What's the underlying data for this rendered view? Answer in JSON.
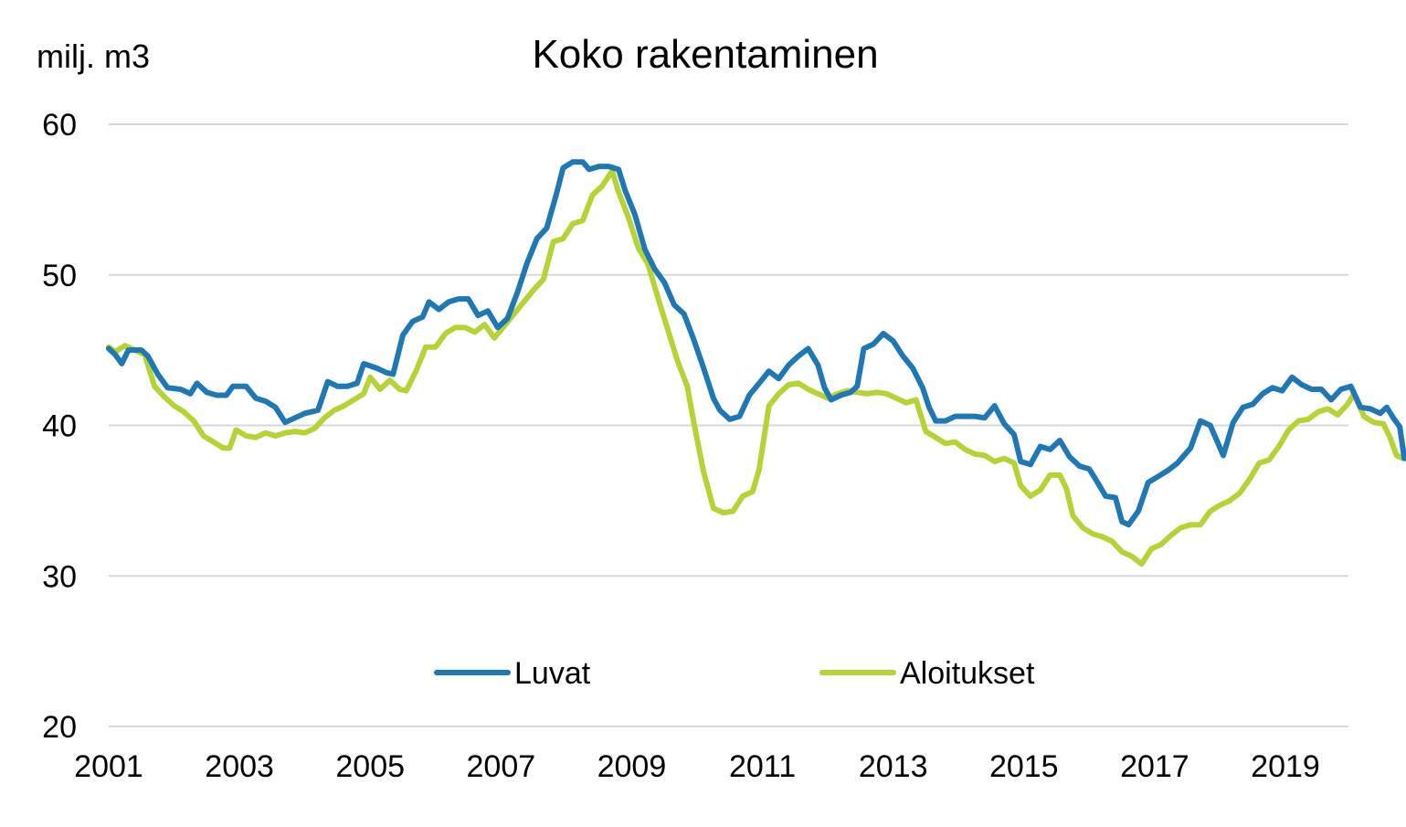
{
  "chart_data": {
    "type": "line",
    "title": "Koko rakentaminen",
    "ylabel": "milj. m3",
    "xlabel": "",
    "xlim": [
      2001,
      2020.1
    ],
    "ylim": [
      20,
      60
    ],
    "yticks": [
      20,
      30,
      40,
      50,
      60
    ],
    "xticks": [
      2001,
      2003,
      2005,
      2007,
      2009,
      2011,
      2013,
      2015,
      2017,
      2019
    ],
    "grid": true,
    "legend": "bottom-center",
    "series": [
      {
        "name": "Luvat",
        "color": "#1f77b4",
        "points": [
          [
            2001.0,
            45.1
          ],
          [
            2001.1,
            44.7
          ],
          [
            2001.2,
            44.1
          ],
          [
            2001.3,
            45.0
          ],
          [
            2001.5,
            45.0
          ],
          [
            2001.6,
            44.6
          ],
          [
            2001.75,
            43.4
          ],
          [
            2001.9,
            42.5
          ],
          [
            2002.1,
            42.4
          ],
          [
            2002.25,
            42.1
          ],
          [
            2002.35,
            42.8
          ],
          [
            2002.5,
            42.2
          ],
          [
            2002.65,
            42.0
          ],
          [
            2002.8,
            42.0
          ],
          [
            2002.9,
            42.6
          ],
          [
            2003.1,
            42.6
          ],
          [
            2003.25,
            41.8
          ],
          [
            2003.4,
            41.6
          ],
          [
            2003.55,
            41.2
          ],
          [
            2003.7,
            40.2
          ],
          [
            2003.85,
            40.5
          ],
          [
            2004.0,
            40.8
          ],
          [
            2004.2,
            41.0
          ],
          [
            2004.35,
            42.9
          ],
          [
            2004.5,
            42.6
          ],
          [
            2004.65,
            42.6
          ],
          [
            2004.8,
            42.8
          ],
          [
            2004.9,
            44.1
          ],
          [
            2005.1,
            43.8
          ],
          [
            2005.25,
            43.5
          ],
          [
            2005.35,
            43.4
          ],
          [
            2005.5,
            46.0
          ],
          [
            2005.65,
            46.9
          ],
          [
            2005.8,
            47.2
          ],
          [
            2005.9,
            48.2
          ],
          [
            2006.05,
            47.7
          ],
          [
            2006.2,
            48.2
          ],
          [
            2006.35,
            48.4
          ],
          [
            2006.5,
            48.4
          ],
          [
            2006.65,
            47.3
          ],
          [
            2006.8,
            47.6
          ],
          [
            2006.95,
            46.5
          ],
          [
            2007.1,
            47.1
          ],
          [
            2007.25,
            48.8
          ],
          [
            2007.4,
            50.8
          ],
          [
            2007.55,
            52.4
          ],
          [
            2007.7,
            53.1
          ],
          [
            2007.85,
            55.4
          ],
          [
            2007.95,
            57.1
          ],
          [
            2008.1,
            57.5
          ],
          [
            2008.25,
            57.5
          ],
          [
            2008.35,
            57.0
          ],
          [
            2008.5,
            57.2
          ],
          [
            2008.65,
            57.2
          ],
          [
            2008.8,
            57.0
          ],
          [
            2008.9,
            55.6
          ],
          [
            2009.05,
            54.0
          ],
          [
            2009.2,
            51.7
          ],
          [
            2009.35,
            50.4
          ],
          [
            2009.5,
            49.5
          ],
          [
            2009.65,
            48.0
          ],
          [
            2009.8,
            47.4
          ],
          [
            2009.95,
            45.7
          ],
          [
            2010.1,
            43.8
          ],
          [
            2010.25,
            41.8
          ],
          [
            2010.35,
            41.0
          ],
          [
            2010.5,
            40.4
          ],
          [
            2010.65,
            40.6
          ],
          [
            2010.8,
            42.0
          ],
          [
            2010.95,
            42.8
          ],
          [
            2011.1,
            43.6
          ],
          [
            2011.25,
            43.1
          ],
          [
            2011.4,
            44.0
          ],
          [
            2011.55,
            44.6
          ],
          [
            2011.7,
            45.1
          ],
          [
            2011.85,
            44.0
          ],
          [
            2011.95,
            42.5
          ],
          [
            2012.05,
            41.7
          ],
          [
            2012.2,
            42.0
          ],
          [
            2012.35,
            42.2
          ],
          [
            2012.45,
            42.6
          ],
          [
            2012.55,
            45.1
          ],
          [
            2012.7,
            45.4
          ],
          [
            2012.85,
            46.1
          ],
          [
            2013.0,
            45.6
          ],
          [
            2013.15,
            44.6
          ],
          [
            2013.3,
            43.8
          ],
          [
            2013.45,
            42.5
          ],
          [
            2013.55,
            41.2
          ],
          [
            2013.65,
            40.3
          ],
          [
            2013.8,
            40.3
          ],
          [
            2013.95,
            40.6
          ],
          [
            2014.1,
            40.6
          ],
          [
            2014.25,
            40.6
          ],
          [
            2014.4,
            40.5
          ],
          [
            2014.55,
            41.3
          ],
          [
            2014.7,
            40.1
          ],
          [
            2014.85,
            39.4
          ],
          [
            2014.95,
            37.6
          ],
          [
            2015.1,
            37.4
          ],
          [
            2015.25,
            38.6
          ],
          [
            2015.4,
            38.4
          ],
          [
            2015.55,
            39.0
          ],
          [
            2015.7,
            37.9
          ],
          [
            2015.85,
            37.3
          ],
          [
            2016.0,
            37.1
          ],
          [
            2016.1,
            36.4
          ],
          [
            2016.25,
            35.3
          ],
          [
            2016.4,
            35.2
          ],
          [
            2016.5,
            33.6
          ],
          [
            2016.6,
            33.4
          ],
          [
            2016.75,
            34.3
          ],
          [
            2016.9,
            36.2
          ],
          [
            2017.05,
            36.6
          ],
          [
            2017.2,
            37.0
          ],
          [
            2017.35,
            37.5
          ],
          [
            2017.45,
            38.0
          ],
          [
            2017.55,
            38.5
          ],
          [
            2017.7,
            40.3
          ],
          [
            2017.85,
            40.0
          ],
          [
            2017.95,
            39.0
          ],
          [
            2018.05,
            38.0
          ],
          [
            2018.2,
            40.2
          ],
          [
            2018.35,
            41.2
          ],
          [
            2018.5,
            41.4
          ],
          [
            2018.65,
            42.1
          ],
          [
            2018.8,
            42.5
          ],
          [
            2018.95,
            42.3
          ],
          [
            2019.1,
            43.2
          ],
          [
            2019.25,
            42.7
          ],
          [
            2019.4,
            42.4
          ],
          [
            2019.55,
            42.4
          ],
          [
            2019.7,
            41.7
          ],
          [
            2019.85,
            42.4
          ],
          [
            2020.0,
            42.6
          ],
          [
            2020.15,
            41.2
          ],
          [
            2020.3,
            41.1
          ],
          [
            2020.45,
            40.8
          ],
          [
            2020.55,
            41.2
          ],
          [
            2020.65,
            40.5
          ],
          [
            2020.75,
            39.9
          ],
          [
            2020.82,
            37.8
          ],
          [
            2020.9,
            37.9
          ]
        ]
      },
      {
        "name": "Aloitukset",
        "color": "#b5d334",
        "points": [
          [
            2001.0,
            45.2
          ],
          [
            2001.1,
            44.9
          ],
          [
            2001.25,
            45.3
          ],
          [
            2001.4,
            45.0
          ],
          [
            2001.55,
            44.7
          ],
          [
            2001.7,
            42.6
          ],
          [
            2001.85,
            41.9
          ],
          [
            2002.0,
            41.3
          ],
          [
            2002.15,
            40.9
          ],
          [
            2002.3,
            40.3
          ],
          [
            2002.45,
            39.3
          ],
          [
            2002.6,
            38.9
          ],
          [
            2002.75,
            38.5
          ],
          [
            2002.85,
            38.5
          ],
          [
            2002.95,
            39.7
          ],
          [
            2003.1,
            39.3
          ],
          [
            2003.25,
            39.2
          ],
          [
            2003.4,
            39.5
          ],
          [
            2003.55,
            39.3
          ],
          [
            2003.7,
            39.5
          ],
          [
            2003.85,
            39.6
          ],
          [
            2004.0,
            39.5
          ],
          [
            2004.15,
            39.8
          ],
          [
            2004.3,
            40.5
          ],
          [
            2004.45,
            41.0
          ],
          [
            2004.6,
            41.3
          ],
          [
            2004.75,
            41.7
          ],
          [
            2004.9,
            42.1
          ],
          [
            2005.0,
            43.2
          ],
          [
            2005.15,
            42.4
          ],
          [
            2005.3,
            43.0
          ],
          [
            2005.45,
            42.4
          ],
          [
            2005.55,
            42.3
          ],
          [
            2005.7,
            43.6
          ],
          [
            2005.85,
            45.2
          ],
          [
            2006.0,
            45.2
          ],
          [
            2006.15,
            46.1
          ],
          [
            2006.3,
            46.5
          ],
          [
            2006.45,
            46.5
          ],
          [
            2006.6,
            46.2
          ],
          [
            2006.75,
            46.7
          ],
          [
            2006.9,
            45.8
          ],
          [
            2007.05,
            46.6
          ],
          [
            2007.2,
            47.4
          ],
          [
            2007.35,
            48.2
          ],
          [
            2007.5,
            49.0
          ],
          [
            2007.65,
            49.7
          ],
          [
            2007.8,
            52.2
          ],
          [
            2007.95,
            52.4
          ],
          [
            2008.1,
            53.4
          ],
          [
            2008.25,
            53.6
          ],
          [
            2008.4,
            55.3
          ],
          [
            2008.55,
            55.9
          ],
          [
            2008.7,
            56.9
          ],
          [
            2008.8,
            55.5
          ],
          [
            2008.95,
            53.8
          ],
          [
            2009.1,
            51.8
          ],
          [
            2009.25,
            50.7
          ],
          [
            2009.4,
            48.5
          ],
          [
            2009.55,
            46.4
          ],
          [
            2009.7,
            44.3
          ],
          [
            2009.85,
            42.6
          ],
          [
            2009.95,
            40.2
          ],
          [
            2010.1,
            36.9
          ],
          [
            2010.25,
            34.5
          ],
          [
            2010.4,
            34.2
          ],
          [
            2010.55,
            34.3
          ],
          [
            2010.7,
            35.3
          ],
          [
            2010.85,
            35.6
          ],
          [
            2010.95,
            37.1
          ],
          [
            2011.1,
            41.3
          ],
          [
            2011.25,
            42.1
          ],
          [
            2011.4,
            42.7
          ],
          [
            2011.55,
            42.8
          ],
          [
            2011.7,
            42.4
          ],
          [
            2011.85,
            42.1
          ],
          [
            2012.0,
            41.8
          ],
          [
            2012.15,
            42.1
          ],
          [
            2012.3,
            42.3
          ],
          [
            2012.45,
            42.2
          ],
          [
            2012.6,
            42.1
          ],
          [
            2012.75,
            42.2
          ],
          [
            2012.9,
            42.1
          ],
          [
            2013.05,
            41.8
          ],
          [
            2013.2,
            41.5
          ],
          [
            2013.35,
            41.7
          ],
          [
            2013.5,
            39.6
          ],
          [
            2013.65,
            39.2
          ],
          [
            2013.8,
            38.8
          ],
          [
            2013.95,
            38.9
          ],
          [
            2014.1,
            38.4
          ],
          [
            2014.25,
            38.1
          ],
          [
            2014.4,
            38.0
          ],
          [
            2014.55,
            37.6
          ],
          [
            2014.7,
            37.8
          ],
          [
            2014.85,
            37.5
          ],
          [
            2014.95,
            36.0
          ],
          [
            2015.1,
            35.3
          ],
          [
            2015.25,
            35.7
          ],
          [
            2015.4,
            36.7
          ],
          [
            2015.55,
            36.7
          ],
          [
            2015.65,
            35.8
          ],
          [
            2015.75,
            34.0
          ],
          [
            2015.9,
            33.2
          ],
          [
            2016.05,
            32.8
          ],
          [
            2016.2,
            32.6
          ],
          [
            2016.35,
            32.3
          ],
          [
            2016.5,
            31.6
          ],
          [
            2016.65,
            31.3
          ],
          [
            2016.8,
            30.8
          ],
          [
            2016.95,
            31.8
          ],
          [
            2017.1,
            32.1
          ],
          [
            2017.25,
            32.7
          ],
          [
            2017.4,
            33.2
          ],
          [
            2017.55,
            33.4
          ],
          [
            2017.7,
            33.4
          ],
          [
            2017.85,
            34.3
          ],
          [
            2018.0,
            34.7
          ],
          [
            2018.15,
            35.0
          ],
          [
            2018.3,
            35.5
          ],
          [
            2018.45,
            36.4
          ],
          [
            2018.6,
            37.5
          ],
          [
            2018.75,
            37.7
          ],
          [
            2018.9,
            38.6
          ],
          [
            2019.05,
            39.7
          ],
          [
            2019.2,
            40.3
          ],
          [
            2019.35,
            40.4
          ],
          [
            2019.5,
            40.9
          ],
          [
            2019.65,
            41.1
          ],
          [
            2019.8,
            40.7
          ],
          [
            2019.95,
            41.4
          ],
          [
            2020.05,
            42.1
          ],
          [
            2020.2,
            40.6
          ],
          [
            2020.35,
            40.2
          ],
          [
            2020.5,
            40.1
          ],
          [
            2020.6,
            39.2
          ],
          [
            2020.7,
            38.0
          ],
          [
            2020.8,
            37.8
          ],
          [
            2020.9,
            38.6
          ],
          [
            2021.0,
            38.5
          ]
        ]
      }
    ]
  }
}
